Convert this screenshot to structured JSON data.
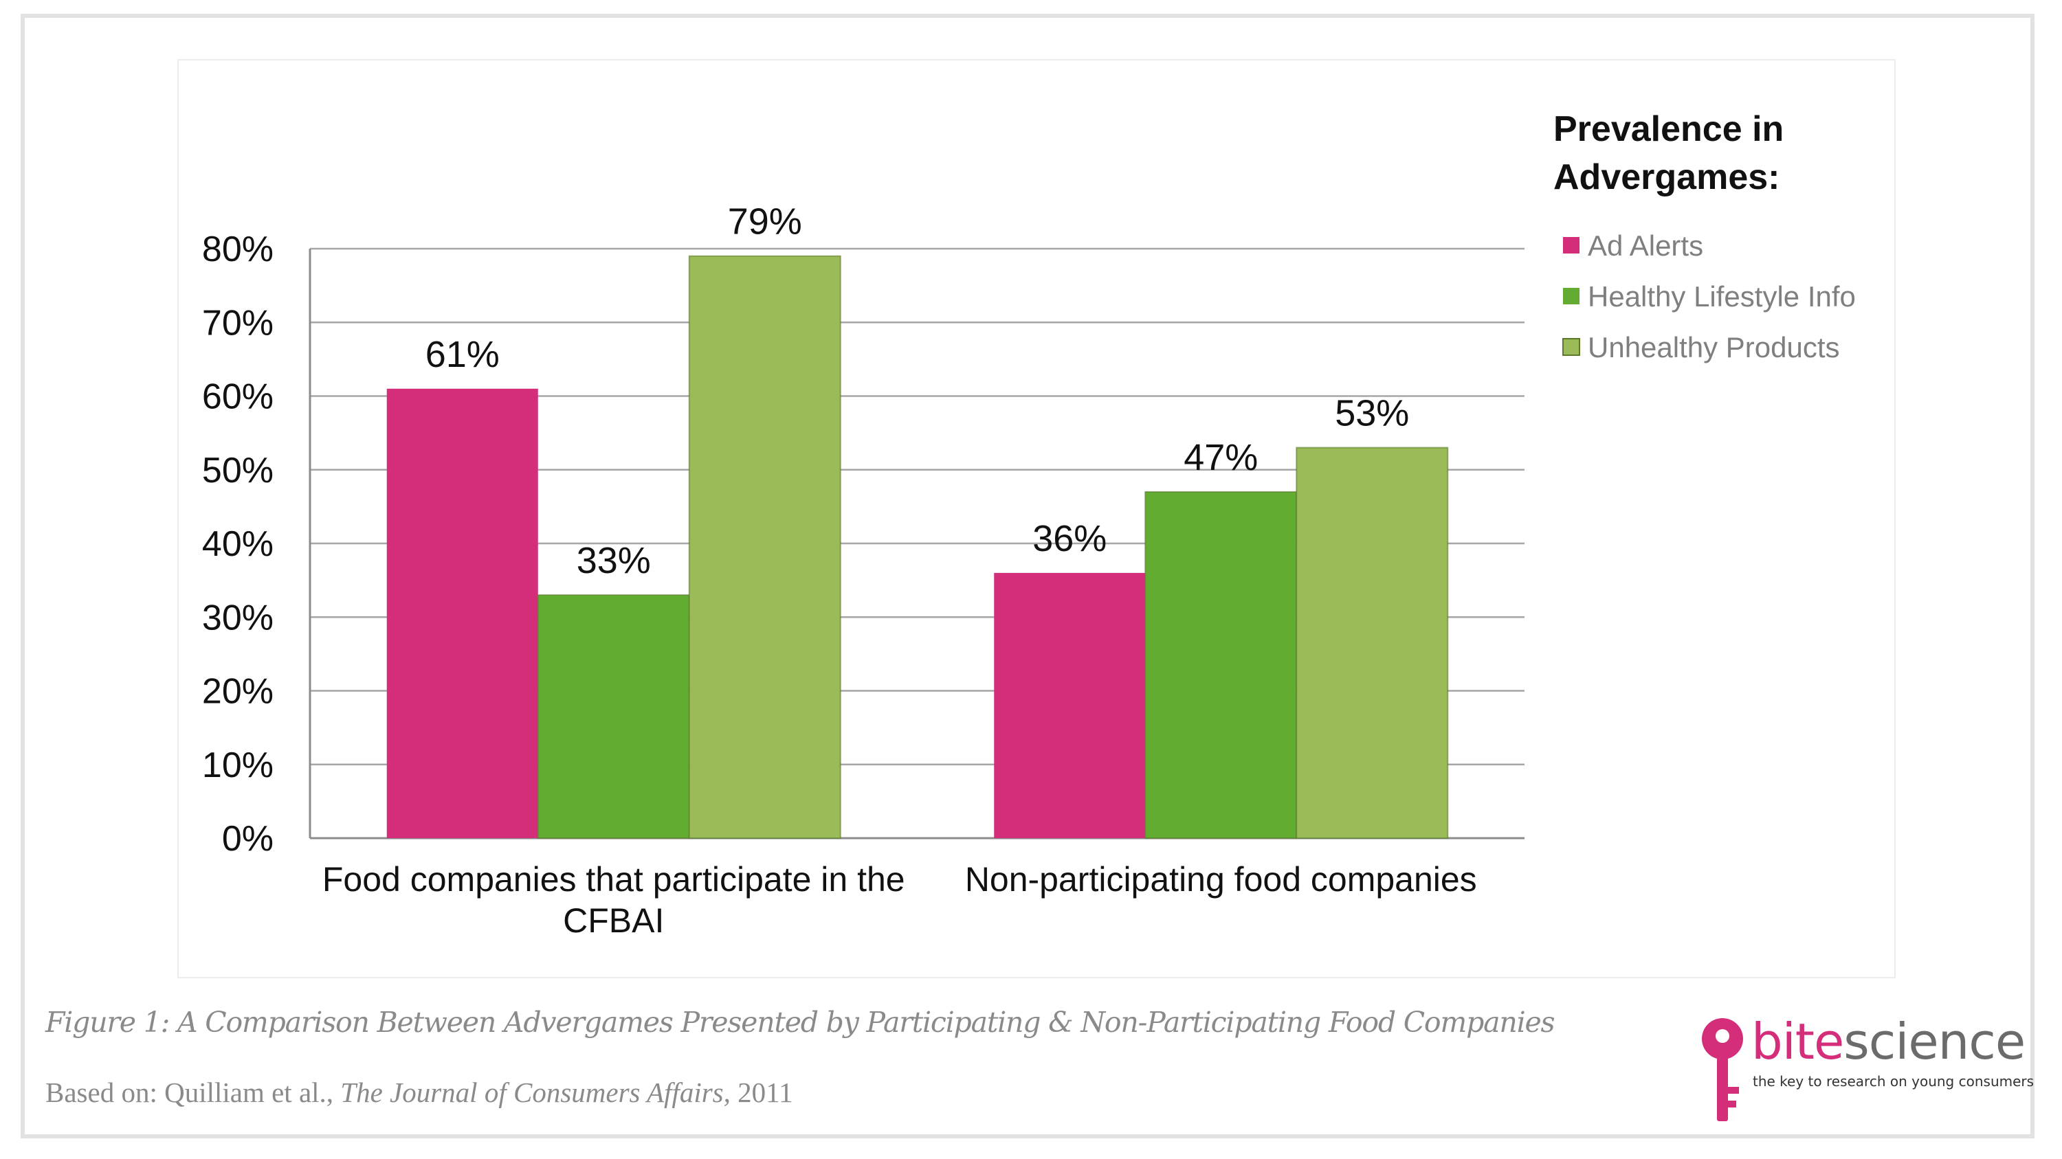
{
  "chart_data": {
    "type": "bar",
    "categories": [
      "Food companies that participate in the CFBAI",
      "Non-participating food companies"
    ],
    "category_lines": [
      [
        "Food companies that participate in the",
        "CFBAI"
      ],
      [
        "Non-participating food companies"
      ]
    ],
    "series": [
      {
        "name": "Ad Alerts",
        "values": [
          61,
          36
        ],
        "color": "#d42e7a"
      },
      {
        "name": "Healthy Lifestyle Info",
        "values": [
          33,
          47
        ],
        "color": "#62ad31"
      },
      {
        "name": "Unhealthy Products",
        "values": [
          79,
          53
        ],
        "color": "#9bbb59"
      }
    ],
    "value_labels": [
      [
        "61%",
        "36%"
      ],
      [
        "33%",
        "47%"
      ],
      [
        "79%",
        "53%"
      ]
    ],
    "y_ticks": [
      "0%",
      "10%",
      "20%",
      "30%",
      "40%",
      "50%",
      "60%",
      "70%",
      "80%"
    ],
    "ylim": [
      0,
      80
    ],
    "grid": true,
    "legend_title_lines": [
      "Prevalence in",
      "Advergames:"
    ],
    "legend_position": "right"
  },
  "caption": "Figure 1: A Comparison Between Advergames Presented by Participating & Non-Participating Food Companies",
  "source": {
    "prefix": "Based on: Quilliam et al., ",
    "journal": "The Journal of Consumers Affairs,",
    "year": " 2011"
  },
  "brand": {
    "name_part1": "bite",
    "name_part2": "science",
    "tagline": "the key to research on young consumers",
    "icon": "key-icon"
  }
}
